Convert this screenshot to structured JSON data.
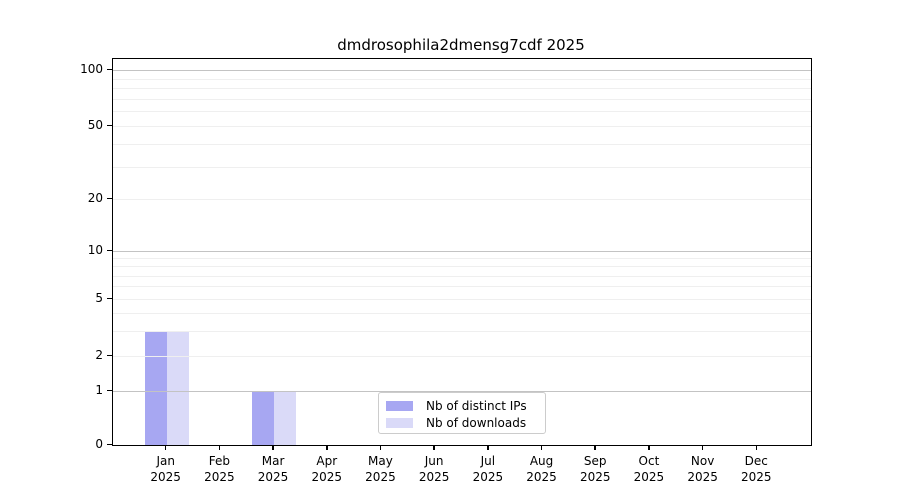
{
  "chart_data": {
    "type": "bar",
    "title": "dmdrosophila2dmensg7cdf 2025",
    "categories": [
      "Jan",
      "Feb",
      "Mar",
      "Apr",
      "May",
      "Jun",
      "Jul",
      "Aug",
      "Sep",
      "Oct",
      "Nov",
      "Dec"
    ],
    "category_year": "2025",
    "series": [
      {
        "name": "Nb of distinct IPs",
        "color": "#a7a7f2",
        "values": [
          3,
          0,
          1,
          0,
          0,
          0,
          0,
          0,
          0,
          0,
          0,
          0
        ]
      },
      {
        "name": "Nb of downloads",
        "color": "#dadaf8",
        "values": [
          3,
          0,
          1,
          0,
          0,
          0,
          0,
          0,
          0,
          0,
          0,
          0
        ]
      }
    ],
    "yaxis": {
      "scale": "log-like (0 baseline, log above 1)",
      "tick_values": [
        0,
        1,
        2,
        5,
        10,
        20,
        50,
        100
      ],
      "tick_labels": [
        "0",
        "1",
        "2",
        "5",
        "10",
        "20",
        "50",
        "100"
      ],
      "major_grid_values": [
        1,
        10,
        100
      ],
      "minor_grid_values": [
        2,
        5,
        20,
        50,
        3,
        4,
        6,
        7,
        8,
        9,
        30,
        40,
        60,
        70,
        80,
        90
      ],
      "ylim": [
        0,
        100
      ]
    },
    "xaxis": {
      "label_format": "month over year, two lines"
    },
    "grid": {
      "on": true,
      "major_color": "#c3c3c3",
      "minor_color": "#efefef"
    },
    "legend": {
      "position": "lower center",
      "entries": [
        "Nb of distinct IPs",
        "Nb of downloads"
      ]
    },
    "colors": {
      "distinct_ips": "#a7a7f2",
      "downloads": "#dadaf8",
      "spine": "#000000",
      "background": "#ffffff"
    }
  }
}
